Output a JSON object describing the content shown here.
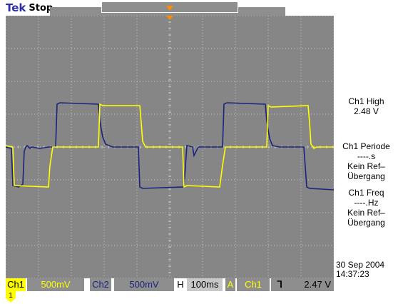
{
  "header": {
    "brand": "Tek",
    "run_state": "Stop"
  },
  "measurements": {
    "ch1_high_label": "Ch1 High",
    "ch1_high_value": "2.48 V",
    "period_label": "Ch1 Periode",
    "period_value": "----.s",
    "period_note_1": "Kein Ref–",
    "period_note_2": "Übergang",
    "freq_label": "Ch1 Freq",
    "freq_value": "----.Hz",
    "freq_note_1": "Kein Ref–",
    "freq_note_2": "Übergang"
  },
  "datetime": {
    "date": "30 Sep  2004",
    "time": "14:37:23"
  },
  "status": {
    "ch1_label": "Ch1",
    "ch1_scale": "500mV",
    "ch2_label": "Ch2",
    "ch2_scale": "500mV",
    "h_label": "H",
    "h_scale": "100ms",
    "trigger_label": "A",
    "trigger_source": "Ch1",
    "trigger_edge": "ᒣ",
    "trigger_level": "2.47 V"
  },
  "marker": {
    "ch1_ground": "1"
  },
  "colors": {
    "ch1": "#ffff00",
    "ch2": "#1a237e",
    "screen": "#868686",
    "trigger": "#ff8c00"
  }
}
